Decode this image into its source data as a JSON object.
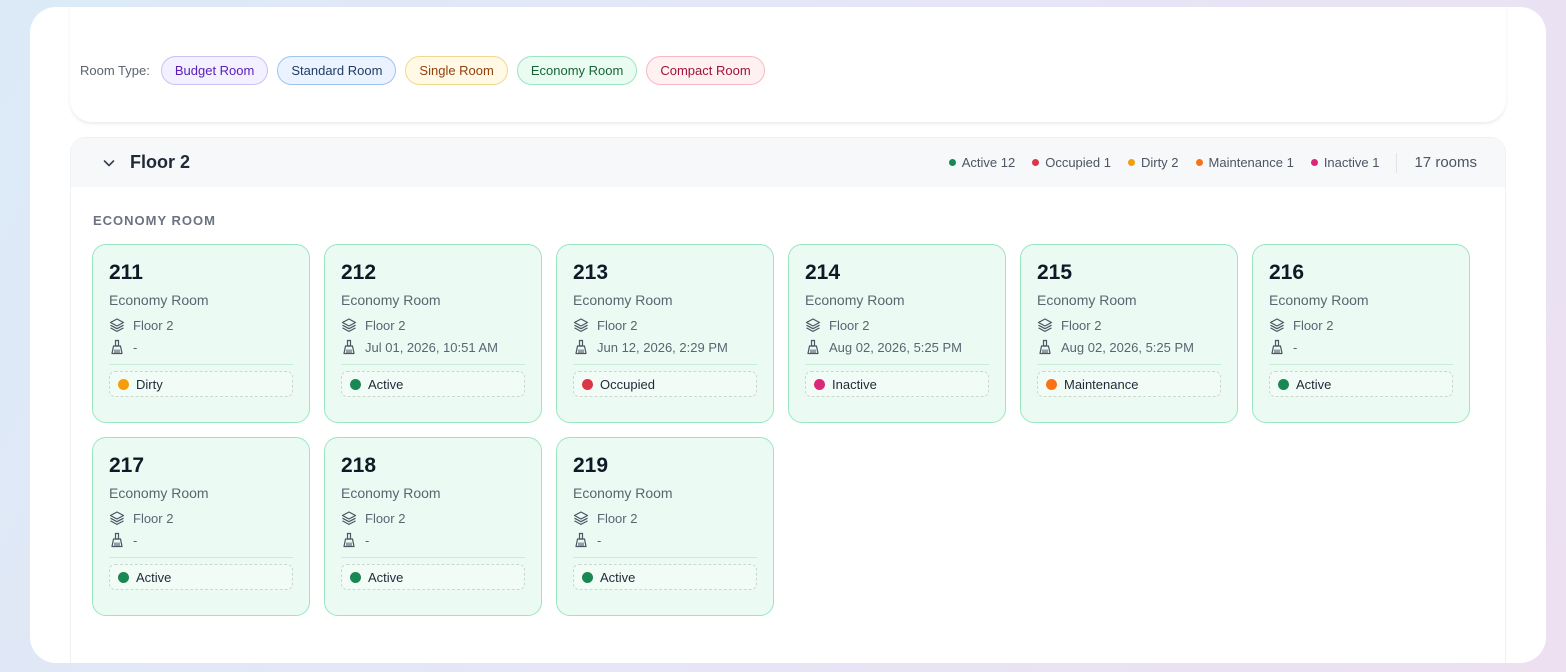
{
  "filters": {
    "label": "Room Type:",
    "chips": [
      {
        "label": "Budget Room",
        "bg": "#f3f0ff",
        "border": "#cbc1f5",
        "color": "#5b21b6"
      },
      {
        "label": "Standard Room",
        "bg": "#eaf3ff",
        "border": "#9fc4ef",
        "color": "#1e3a5f"
      },
      {
        "label": "Single Room",
        "bg": "#fff9e5",
        "border": "#f1d98a",
        "color": "#92400e"
      },
      {
        "label": "Economy Room",
        "bg": "#eafbf2",
        "border": "#9be6c0",
        "color": "#166534"
      },
      {
        "label": "Compact Room",
        "bg": "#fff0f2",
        "border": "#f5b9c3",
        "color": "#9f1239"
      }
    ]
  },
  "floor": {
    "title": "Floor 2",
    "stats": [
      {
        "label": "Active 12",
        "color": "#1a8754"
      },
      {
        "label": "Occupied 1",
        "color": "#dc3545"
      },
      {
        "label": "Dirty 2",
        "color": "#f59e0b"
      },
      {
        "label": "Maintenance 1",
        "color": "#f97316"
      },
      {
        "label": "Inactive 1",
        "color": "#db2777"
      }
    ],
    "room_count": "17 rooms",
    "group_label": "ECONOMY ROOM",
    "rooms": [
      {
        "number": "211",
        "type": "Economy Room",
        "floor": "Floor 2",
        "cleaned": "-",
        "status": "Dirty",
        "status_color": "#f59e0b"
      },
      {
        "number": "212",
        "type": "Economy Room",
        "floor": "Floor 2",
        "cleaned": "Jul 01, 2026, 10:51 AM",
        "status": "Active",
        "status_color": "#1a8754"
      },
      {
        "number": "213",
        "type": "Economy Room",
        "floor": "Floor 2",
        "cleaned": "Jun 12, 2026, 2:29 PM",
        "status": "Occupied",
        "status_color": "#dc3545"
      },
      {
        "number": "214",
        "type": "Economy Room",
        "floor": "Floor 2",
        "cleaned": "Aug 02, 2026, 5:25 PM",
        "status": "Inactive",
        "status_color": "#db2777"
      },
      {
        "number": "215",
        "type": "Economy Room",
        "floor": "Floor 2",
        "cleaned": "Aug 02, 2026, 5:25 PM",
        "status": "Maintenance",
        "status_color": "#f97316"
      },
      {
        "number": "216",
        "type": "Economy Room",
        "floor": "Floor 2",
        "cleaned": "-",
        "status": "Active",
        "status_color": "#1a8754"
      },
      {
        "number": "217",
        "type": "Economy Room",
        "floor": "Floor 2",
        "cleaned": "-",
        "status": "Active",
        "status_color": "#1a8754"
      },
      {
        "number": "218",
        "type": "Economy Room",
        "floor": "Floor 2",
        "cleaned": "-",
        "status": "Active",
        "status_color": "#1a8754"
      },
      {
        "number": "219",
        "type": "Economy Room",
        "floor": "Floor 2",
        "cleaned": "-",
        "status": "Active",
        "status_color": "#1a8754"
      }
    ]
  },
  "icons": {
    "chevron": "chevron-down-icon",
    "floor": "layers-icon",
    "cleaned": "broom-icon"
  }
}
